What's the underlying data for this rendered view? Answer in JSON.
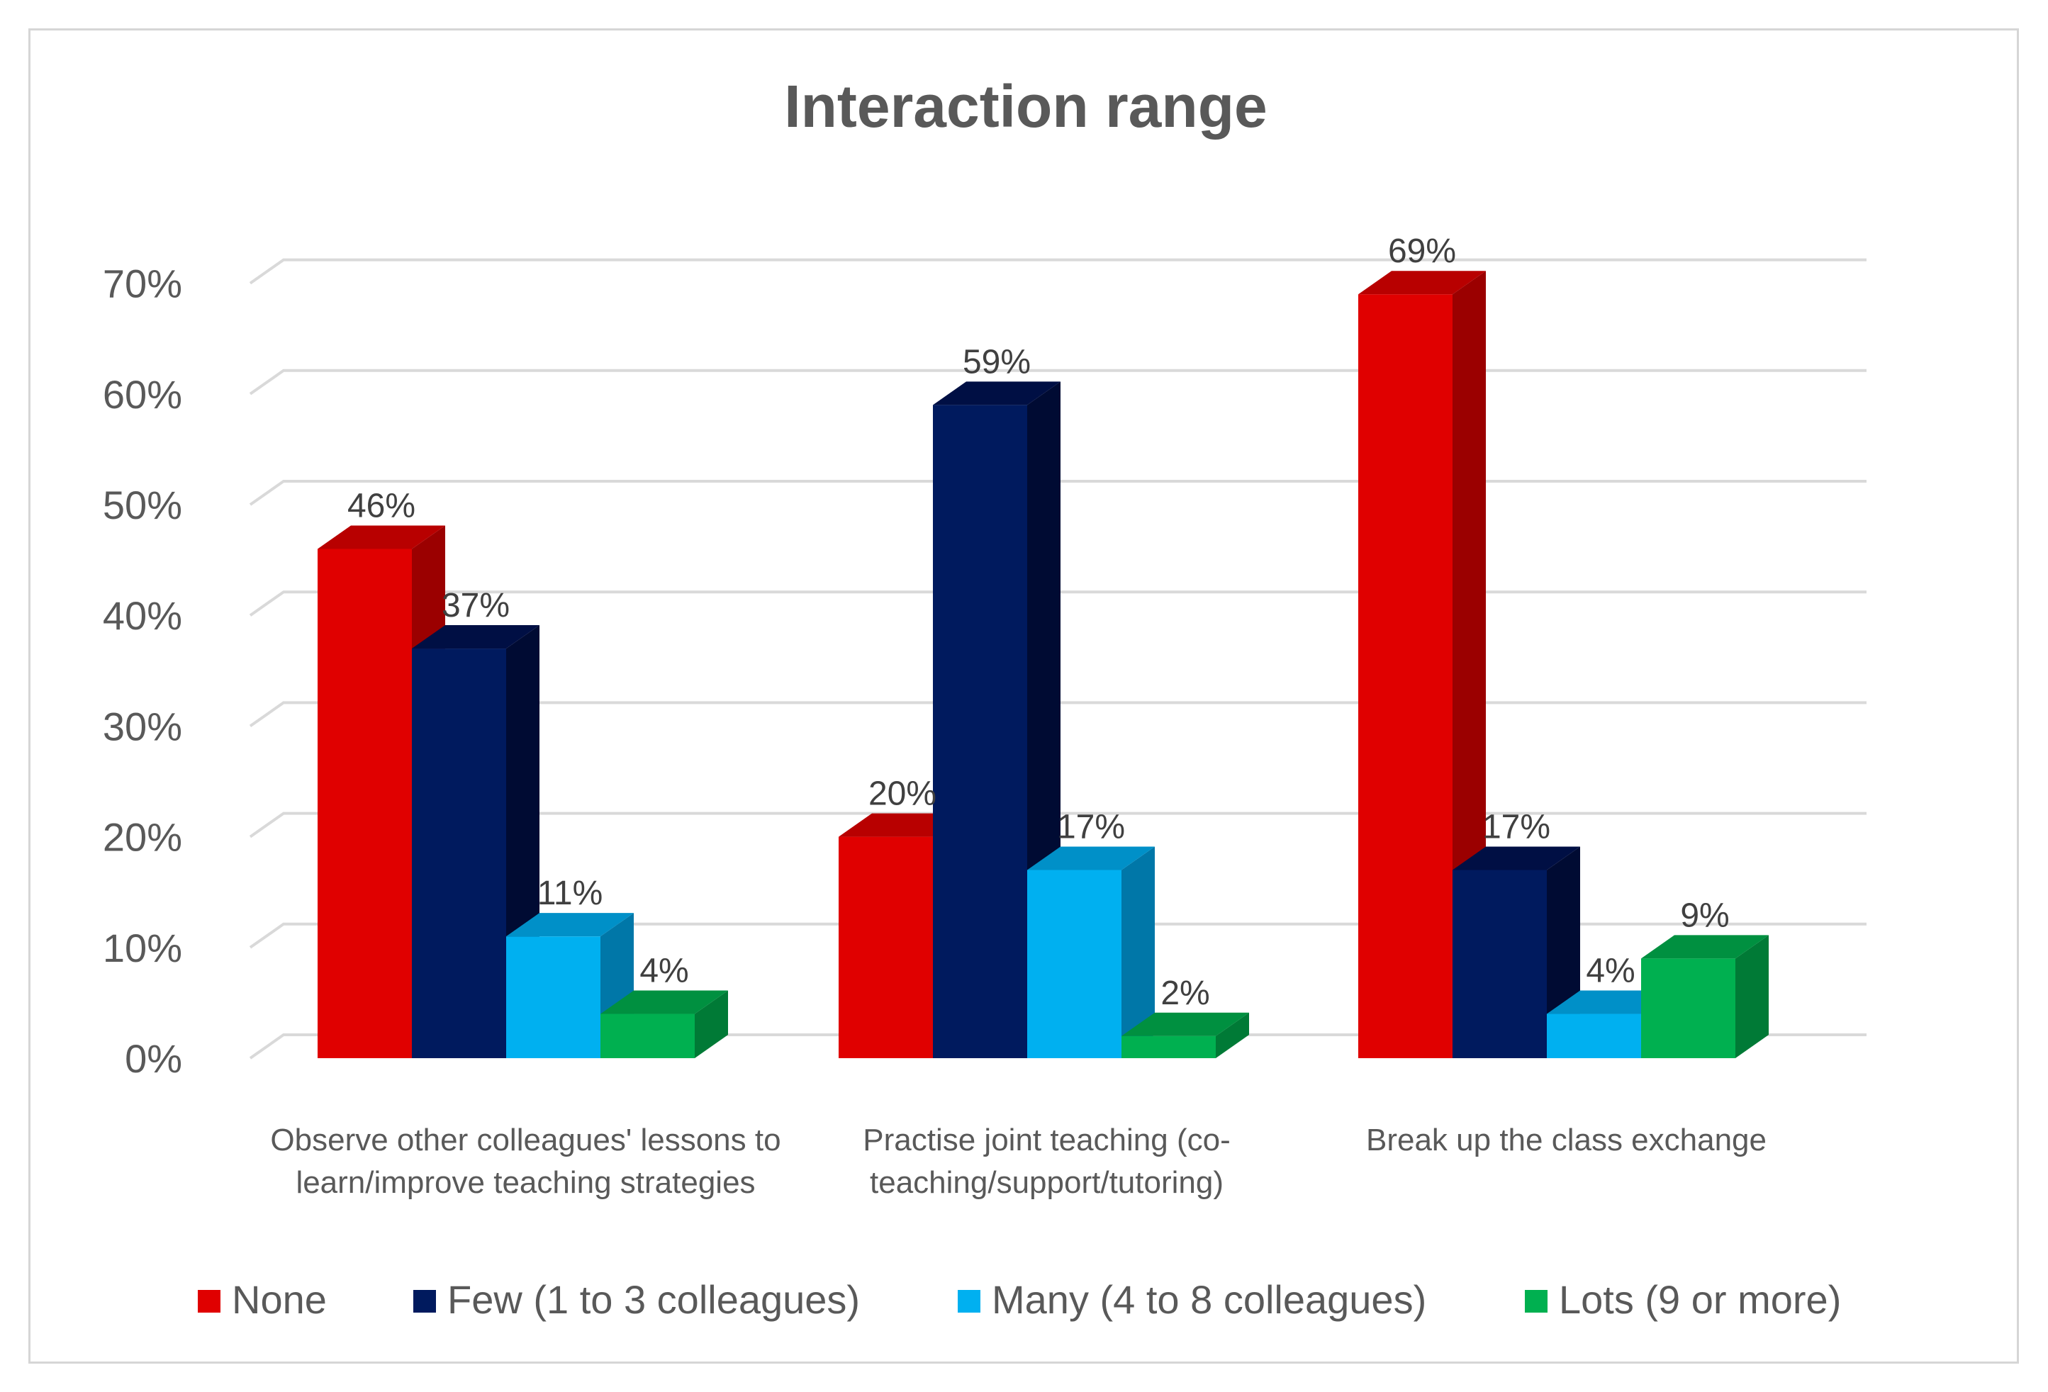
{
  "chart_data": {
    "type": "bar",
    "title": "Interaction range",
    "categories": [
      [
        "Observe other colleagues' lessons to",
        "learn/improve teaching strategies"
      ],
      [
        "Practise joint teaching (co-",
        "teaching/support/tutoring)"
      ],
      [
        "Break up the class exchange"
      ]
    ],
    "series": [
      {
        "name": "None",
        "values": [
          46,
          20,
          69
        ],
        "labels": [
          "46%",
          "20%",
          "69%"
        ],
        "color": "#e00000",
        "side": "#9b0000",
        "top": "#b80000"
      },
      {
        "name": "Few (1 to 3 colleagues)",
        "values": [
          37,
          59,
          17
        ],
        "labels": [
          "37%",
          "59%",
          "17%"
        ],
        "color": "#001a5e",
        "side": "#000b33",
        "top": "#000f44"
      },
      {
        "name": "Many (4 to 8 colleagues)",
        "values": [
          11,
          17,
          4
        ],
        "labels": [
          "11%",
          "17%",
          "4%"
        ],
        "color": "#00b0f0",
        "side": "#0077a8",
        "top": "#0090c8"
      },
      {
        "name": "Lots (9 or more)",
        "values": [
          4,
          2,
          9
        ],
        "labels": [
          "4%",
          "2%",
          "9%"
        ],
        "color": "#00b050",
        "side": "#007a36",
        "top": "#009040"
      }
    ],
    "yticks": [
      "0%",
      "10%",
      "20%",
      "30%",
      "40%",
      "50%",
      "60%",
      "70%"
    ],
    "ylim": [
      0,
      70
    ],
    "xlabel": "",
    "ylabel": "",
    "legend_position": "bottom",
    "grid": true
  }
}
